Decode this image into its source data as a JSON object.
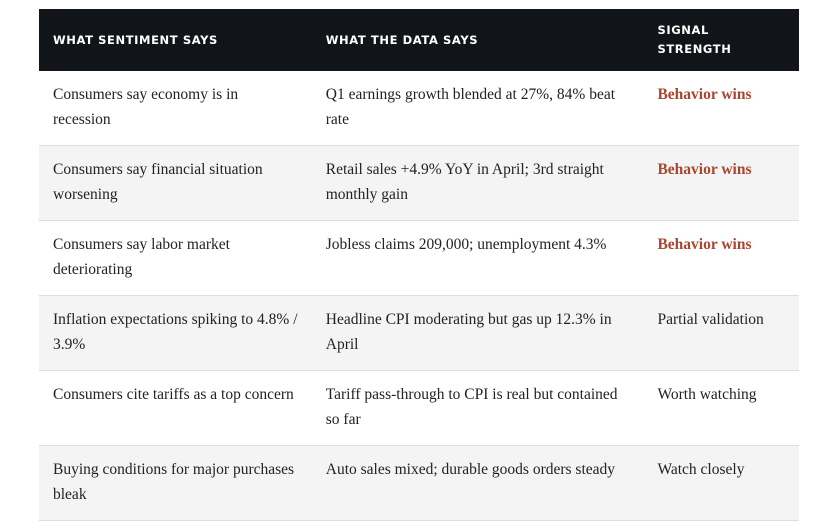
{
  "table": {
    "header": [
      "WHAT SENTIMENT SAYS",
      "WHAT THE DATA SAYS",
      "SIGNAL STRENGTH"
    ],
    "rows": [
      [
        "Consumers say economy is in recession",
        "Q1 earnings growth blended at 27%, 84% beat rate",
        "Behavior wins"
      ],
      [
        "Consumers say financial situation worsening",
        "Retail sales +4.9% YoY in April; 3rd straight monthly gain",
        "Behavior wins"
      ],
      [
        "Consumers say labor market deteriorating",
        "Jobless claims 209,000; unemployment 4.3%",
        "Behavior wins"
      ],
      [
        "Inflation expectations spiking to 4.8% / 3.9%",
        "Headline CPI moderating but gas up 12.3% in April",
        "Partial validation"
      ],
      [
        "Consumers cite tariffs as a top concern",
        "Tariff pass-through to CPI is real but contained so far",
        "Worth watching"
      ],
      [
        "Buying conditions for major purchases bleak",
        "Auto sales mixed; durable goods orders steady",
        "Watch closely"
      ]
    ]
  }
}
